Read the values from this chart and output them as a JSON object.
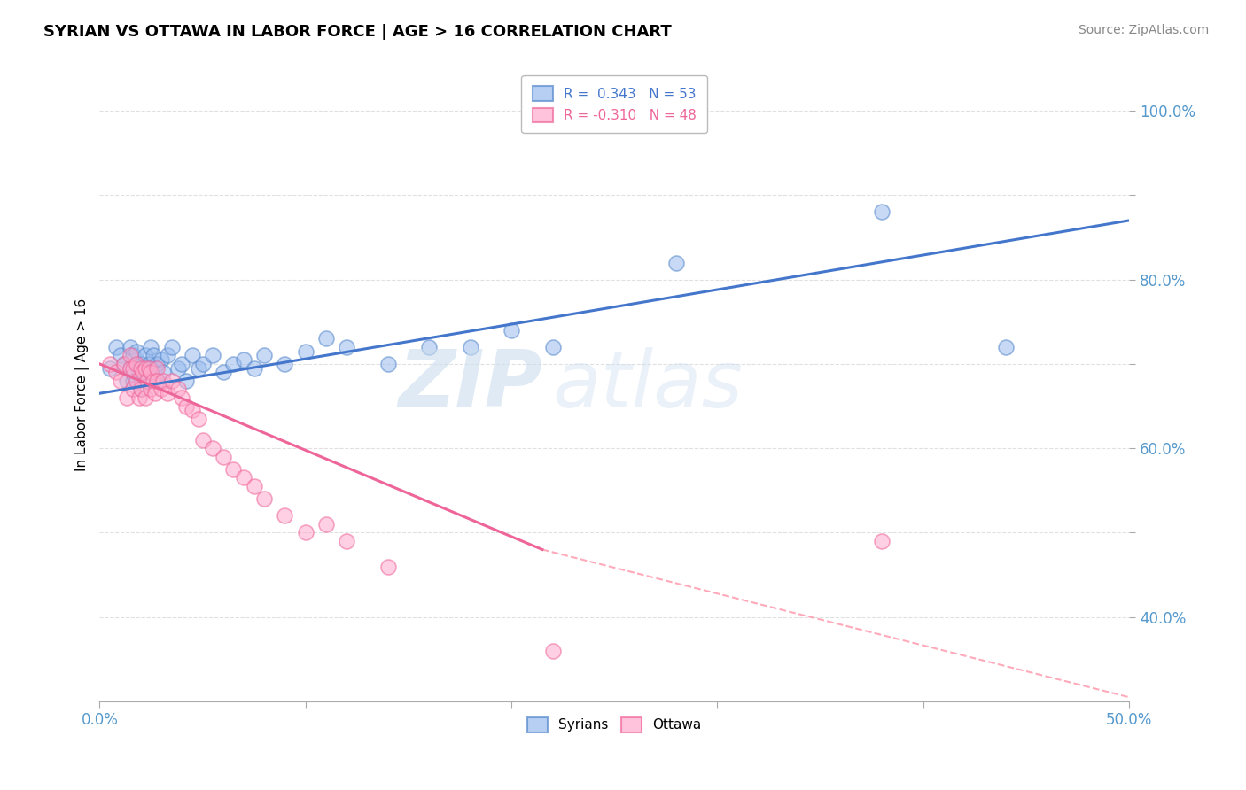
{
  "title": "SYRIAN VS OTTAWA IN LABOR FORCE | AGE > 16 CORRELATION CHART",
  "source": "Source: ZipAtlas.com",
  "ylabel": "In Labor Force | Age > 16",
  "xlim": [
    0.0,
    0.5
  ],
  "ylim": [
    0.3,
    1.05
  ],
  "legend_r_blue": "R =  0.343",
  "legend_n_blue": "N = 53",
  "legend_r_pink": "R = -0.310",
  "legend_n_pink": "N = 48",
  "blue_color": "#99BBEE",
  "pink_color": "#FFAACC",
  "blue_edge_color": "#5588CC",
  "pink_edge_color": "#EE6699",
  "blue_line_color": "#4477CC",
  "pink_line_color": "#EE6699",
  "dashed_line_color": "#FFAABB",
  "syrians_label": "Syrians",
  "ottawa_label": "Ottawa",
  "blue_scatter_x": [
    0.005,
    0.008,
    0.01,
    0.012,
    0.013,
    0.015,
    0.015,
    0.016,
    0.016,
    0.018,
    0.018,
    0.019,
    0.02,
    0.02,
    0.021,
    0.022,
    0.022,
    0.023,
    0.024,
    0.025,
    0.025,
    0.026,
    0.027,
    0.028,
    0.028,
    0.03,
    0.031,
    0.033,
    0.035,
    0.038,
    0.04,
    0.042,
    0.045,
    0.048,
    0.05,
    0.055,
    0.06,
    0.065,
    0.07,
    0.075,
    0.08,
    0.09,
    0.1,
    0.11,
    0.12,
    0.14,
    0.16,
    0.18,
    0.2,
    0.22,
    0.28,
    0.38,
    0.44
  ],
  "blue_scatter_y": [
    0.695,
    0.72,
    0.71,
    0.7,
    0.68,
    0.72,
    0.695,
    0.71,
    0.68,
    0.7,
    0.715,
    0.69,
    0.7,
    0.67,
    0.69,
    0.695,
    0.71,
    0.68,
    0.7,
    0.72,
    0.69,
    0.71,
    0.695,
    0.7,
    0.68,
    0.705,
    0.69,
    0.71,
    0.72,
    0.695,
    0.7,
    0.68,
    0.71,
    0.695,
    0.7,
    0.71,
    0.69,
    0.7,
    0.705,
    0.695,
    0.71,
    0.7,
    0.715,
    0.73,
    0.72,
    0.7,
    0.72,
    0.72,
    0.74,
    0.72,
    0.82,
    0.88,
    0.72
  ],
  "pink_scatter_x": [
    0.005,
    0.008,
    0.01,
    0.012,
    0.013,
    0.015,
    0.015,
    0.016,
    0.016,
    0.018,
    0.018,
    0.019,
    0.02,
    0.02,
    0.021,
    0.022,
    0.022,
    0.023,
    0.024,
    0.025,
    0.025,
    0.026,
    0.027,
    0.028,
    0.028,
    0.03,
    0.031,
    0.033,
    0.035,
    0.038,
    0.04,
    0.042,
    0.045,
    0.048,
    0.05,
    0.055,
    0.06,
    0.065,
    0.07,
    0.075,
    0.08,
    0.09,
    0.1,
    0.11,
    0.12,
    0.14,
    0.22,
    0.38
  ],
  "pink_scatter_y": [
    0.7,
    0.69,
    0.68,
    0.7,
    0.66,
    0.695,
    0.71,
    0.67,
    0.695,
    0.68,
    0.7,
    0.66,
    0.695,
    0.67,
    0.69,
    0.695,
    0.66,
    0.68,
    0.695,
    0.67,
    0.69,
    0.68,
    0.665,
    0.695,
    0.68,
    0.67,
    0.68,
    0.665,
    0.68,
    0.67,
    0.66,
    0.65,
    0.645,
    0.635,
    0.61,
    0.6,
    0.59,
    0.575,
    0.565,
    0.555,
    0.54,
    0.52,
    0.5,
    0.51,
    0.49,
    0.46,
    0.36,
    0.49
  ],
  "blue_line_x": [
    0.0,
    0.5
  ],
  "blue_line_y": [
    0.665,
    0.87
  ],
  "pink_line_x": [
    0.0,
    0.215
  ],
  "pink_line_y": [
    0.7,
    0.48
  ],
  "dashed_line_x": [
    0.215,
    0.5
  ],
  "dashed_line_y": [
    0.48,
    0.305
  ],
  "grid_color": "#DDDDDD",
  "background_color": "#FFFFFF",
  "tick_color": "#5599CC",
  "title_fontsize": 13,
  "source_fontsize": 10,
  "axis_label_fontsize": 11,
  "tick_fontsize": 12,
  "legend_fontsize": 11
}
